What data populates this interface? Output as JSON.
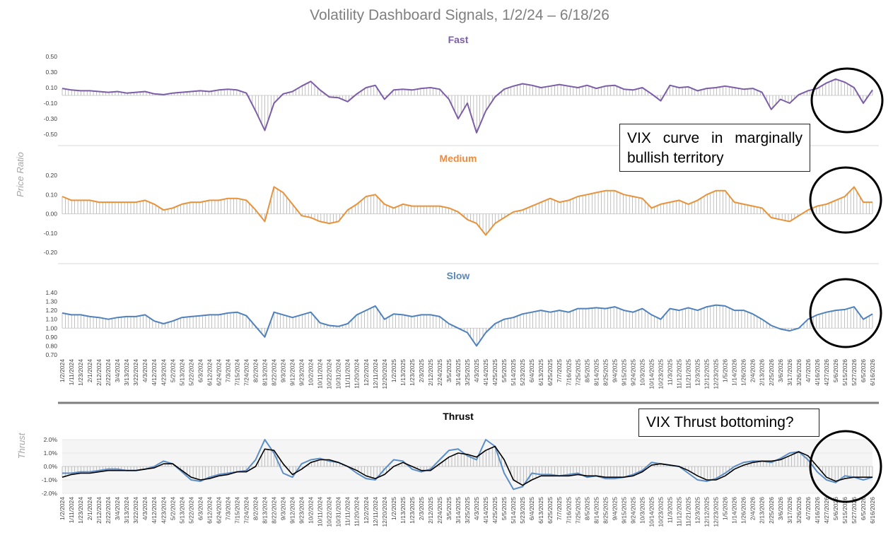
{
  "title": "Volatility Dashboard Signals, 1/2/24 – 6/18/26",
  "y_titles": {
    "top": "Price Ratio",
    "bottom": "Thrust"
  },
  "annotations": {
    "curve_note": "VIX curve in marginally bullish territory",
    "thrust_note": "VIX Thrust bottoming?"
  },
  "colors": {
    "fast": "#7b5ea7",
    "fast_title": "#7b5ea7",
    "medium": "#e8923a",
    "medium_title": "#ed8b3c",
    "slow": "#4f81bd",
    "slow_title": "#5a87b8",
    "thrust_fast": "#5b8ec6",
    "thrust_slow": "#000000",
    "hist": "#a6a6a6",
    "divider": "#7f7f7f"
  },
  "x_dates_1": [
    "1/2/2024",
    "1/11/2024",
    "1/23/2024",
    "2/1/2024",
    "2/12/2024",
    "2/22/2024",
    "3/4/2024",
    "3/13/2024",
    "3/22/2024",
    "4/3/2024",
    "4/12/2024",
    "4/23/2024",
    "5/2/2024",
    "5/13/2024",
    "5/22/2024",
    "6/3/2024",
    "6/12/2024",
    "6/24/2024",
    "7/3/2024",
    "7/15/2024",
    "7/24/2024",
    "8/2/2024",
    "8/13/2024",
    "8/22/2024",
    "9/3/2024",
    "9/12/2024",
    "9/23/2024",
    "10/2/2024",
    "10/11/2024",
    "10/22/2024",
    "10/31/2024",
    "11/11/2024",
    "11/20/2024",
    "12/2/2024",
    "12/11/2024",
    "12/20/2024",
    "1/2/2025",
    "1/13/2025",
    "1/23/2025",
    "2/3/2025",
    "2/12/2025",
    "2/24/2025",
    "3/5/2025",
    "3/14/2025",
    "3/25/2025",
    "4/3/2025",
    "4/14/2025",
    "4/25/2025",
    "5/5/2025",
    "5/14/2025",
    "5/23/2025",
    "6/4/2025",
    "6/13/2025",
    "6/25/2025",
    "7/7/2025",
    "7/16/2025",
    "7/25/2025",
    "8/5/2025",
    "8/14/2025",
    "8/25/2025",
    "9/4/2025",
    "9/15/2025",
    "9/24/2025",
    "10/3/2025",
    "10/14/2025",
    "10/23/2025",
    "11/3/2025",
    "11/12/2025",
    "11/21/2025",
    "12/3/2025",
    "12/12/2025",
    "12/23/2025",
    "1/5/2026",
    "1/14/2026",
    "1/26/2026",
    "2/4/2026",
    "2/13/2026",
    "2/25/2026",
    "3/6/2026",
    "3/17/2026",
    "3/26/2026",
    "4/7/2026",
    "4/16/2026",
    "4/27/2026",
    "5/6/2026",
    "5/15/2026",
    "5/27/2026",
    "6/5/2026",
    "6/16/2026"
  ],
  "x_dates_2": [
    "1/2/2024",
    "1/11/2024",
    "1/23/2024",
    "2/1/2024",
    "2/12/2024",
    "2/22/2024",
    "3/4/2024",
    "3/13/2024",
    "3/22/2024",
    "4/3/2024",
    "4/12/2024",
    "4/23/2024",
    "5/2/2024",
    "5/13/2024",
    "5/22/2024",
    "6/3/2024",
    "6/12/2024",
    "6/24/2024",
    "7/3/2024",
    "7/15/2024",
    "7/24/2024",
    "8/2/2024",
    "8/13/2024",
    "8/22/2024",
    "9/3/2024",
    "9/12/2024",
    "9/23/2024",
    "10/2/2024",
    "10/11/2024",
    "10/22/2024",
    "10/31/2024",
    "11/11/2024",
    "11/20/2024",
    "12/2/2024",
    "12/11/2024",
    "12/20/2024",
    "1/2/2025",
    "1/13/2025",
    "1/23/2025",
    "2/3/2025",
    "2/12/2025",
    "2/24/2025",
    "3/5/2025",
    "3/14/2025",
    "3/25/2025",
    "4/3/2025",
    "4/14/2025",
    "4/25/2025",
    "5/5/2025",
    "5/14/2025",
    "5/23/2025",
    "6/4/2025",
    "6/13/2025",
    "6/25/2025",
    "7/7/2025",
    "7/16/2025",
    "7/25/2025",
    "8/5/2025",
    "8/14/2025",
    "8/25/2025",
    "9/4/2025",
    "9/15/2025",
    "9/24/2025",
    "10/3/2025",
    "10/14/2025",
    "10/23/2025",
    "11/3/2025",
    "11/12/2025",
    "11/21/2025",
    "12/3/2025",
    "12/12/2025",
    "12/23/2025",
    "1/5/2026",
    "1/14/2026",
    "1/26/2026",
    "2/4/2026",
    "2/13/2026",
    "2/25/2026",
    "3/6/2026",
    "3/17/2026",
    "3/26/2026",
    "4/7/2026",
    "4/16/2026",
    "4/27/2026",
    "5/6/2026",
    "5/15/2026",
    "5/27/2026",
    "6/5/2026",
    "6/16/2026"
  ],
  "chart_data": [
    {
      "name": "fast",
      "type": "line",
      "title": "Fast",
      "ylim": [
        -0.5,
        0.5
      ],
      "yticks": [
        "0.50",
        "0.30",
        "0.10",
        "-0.10",
        "-0.30",
        "-0.50"
      ],
      "hist": true,
      "series": [
        {
          "name": "Fast",
          "values": [
            0.09,
            0.07,
            0.06,
            0.06,
            0.05,
            0.04,
            0.05,
            0.03,
            0.04,
            0.05,
            0.02,
            0.01,
            0.03,
            0.04,
            0.05,
            0.06,
            0.05,
            0.07,
            0.08,
            0.07,
            0.03,
            -0.2,
            -0.45,
            -0.1,
            0.02,
            0.05,
            0.12,
            0.18,
            0.07,
            -0.02,
            -0.03,
            -0.08,
            0.02,
            0.1,
            0.13,
            -0.05,
            0.07,
            0.08,
            0.07,
            0.09,
            0.1,
            0.08,
            -0.05,
            -0.3,
            -0.1,
            -0.48,
            -0.2,
            -0.02,
            0.08,
            0.12,
            0.15,
            0.13,
            0.1,
            0.12,
            0.14,
            0.12,
            0.1,
            0.13,
            0.09,
            0.12,
            0.13,
            0.08,
            0.07,
            0.1,
            0.02,
            -0.07,
            0.13,
            0.1,
            0.11,
            0.06,
            0.09,
            0.1,
            0.12,
            0.1,
            0.08,
            0.09,
            0.04,
            -0.18,
            -0.05,
            -0.1,
            0.01,
            0.06,
            0.09,
            0.16,
            0.21,
            0.17,
            0.1,
            -0.1,
            0.07
          ]
        }
      ]
    },
    {
      "name": "medium",
      "type": "line",
      "title": "Medium",
      "ylim": [
        -0.2,
        0.2
      ],
      "yticks": [
        "0.20",
        "0.10",
        "0.00",
        "-0.10",
        "-0.20"
      ],
      "hist": true,
      "series": [
        {
          "name": "Medium",
          "values": [
            0.09,
            0.07,
            0.07,
            0.07,
            0.06,
            0.06,
            0.06,
            0.06,
            0.06,
            0.07,
            0.05,
            0.02,
            0.03,
            0.05,
            0.06,
            0.06,
            0.07,
            0.07,
            0.08,
            0.08,
            0.07,
            0.02,
            -0.04,
            0.14,
            0.11,
            0.05,
            -0.01,
            -0.02,
            -0.04,
            -0.05,
            -0.04,
            0.02,
            0.05,
            0.09,
            0.1,
            0.05,
            0.03,
            0.05,
            0.04,
            0.04,
            0.04,
            0.04,
            0.03,
            0.01,
            -0.03,
            -0.05,
            -0.11,
            -0.05,
            -0.02,
            0.01,
            0.02,
            0.04,
            0.06,
            0.08,
            0.06,
            0.07,
            0.09,
            0.1,
            0.11,
            0.12,
            0.12,
            0.1,
            0.09,
            0.08,
            0.03,
            0.05,
            0.06,
            0.07,
            0.05,
            0.07,
            0.1,
            0.12,
            0.12,
            0.06,
            0.05,
            0.04,
            0.03,
            -0.02,
            -0.03,
            -0.04,
            -0.01,
            0.02,
            0.04,
            0.05,
            0.07,
            0.09,
            0.14,
            0.06,
            0.06
          ]
        }
      ]
    },
    {
      "name": "slow",
      "type": "line",
      "title": "Slow",
      "ylim": [
        0.7,
        1.4
      ],
      "yticks": [
        "1.40",
        "1.30",
        "1.20",
        "1.10",
        "1.00",
        "0.90",
        "0.80",
        "0.70"
      ],
      "hist_base": 1.0,
      "hist": true,
      "series": [
        {
          "name": "Slow",
          "values": [
            1.17,
            1.15,
            1.15,
            1.13,
            1.12,
            1.1,
            1.12,
            1.13,
            1.13,
            1.15,
            1.08,
            1.05,
            1.08,
            1.12,
            1.13,
            1.14,
            1.15,
            1.15,
            1.17,
            1.18,
            1.14,
            1.02,
            0.9,
            1.18,
            1.15,
            1.12,
            1.15,
            1.18,
            1.06,
            1.03,
            1.02,
            1.05,
            1.15,
            1.2,
            1.25,
            1.1,
            1.16,
            1.15,
            1.13,
            1.15,
            1.15,
            1.13,
            1.05,
            1.0,
            0.95,
            0.8,
            0.95,
            1.05,
            1.1,
            1.12,
            1.16,
            1.18,
            1.2,
            1.18,
            1.2,
            1.18,
            1.22,
            1.22,
            1.23,
            1.22,
            1.24,
            1.2,
            1.18,
            1.22,
            1.15,
            1.1,
            1.22,
            1.2,
            1.23,
            1.2,
            1.24,
            1.26,
            1.25,
            1.2,
            1.2,
            1.16,
            1.1,
            1.03,
            0.99,
            0.97,
            1.0,
            1.1,
            1.15,
            1.18,
            1.2,
            1.21,
            1.24,
            1.1,
            1.16
          ]
        }
      ]
    },
    {
      "name": "thrust",
      "type": "line",
      "title": "Thrust",
      "ylim": [
        -2.0,
        2.0
      ],
      "yticks": [
        "2.0%",
        "1.0%",
        "0.0%",
        "-1.0%",
        "-2.0%"
      ],
      "hist": true,
      "series": [
        {
          "name": "Thrust fast",
          "values": [
            -0.5,
            -0.5,
            -0.4,
            -0.4,
            -0.3,
            -0.2,
            -0.2,
            -0.3,
            -0.3,
            -0.2,
            0.0,
            0.4,
            0.2,
            -0.4,
            -1.0,
            -1.1,
            -0.8,
            -0.6,
            -0.5,
            -0.4,
            -0.3,
            0.5,
            2.0,
            1.0,
            -0.5,
            -0.8,
            0.2,
            0.5,
            0.6,
            0.4,
            0.3,
            0.0,
            -0.5,
            -0.9,
            -1.0,
            -0.2,
            0.5,
            0.4,
            -0.2,
            -0.4,
            -0.2,
            0.5,
            1.2,
            1.3,
            0.8,
            0.5,
            2.0,
            1.5,
            -0.5,
            -1.7,
            -1.5,
            -0.5,
            -0.6,
            -0.6,
            -0.7,
            -0.6,
            -0.5,
            -0.8,
            -0.7,
            -0.9,
            -0.9,
            -0.8,
            -0.6,
            -0.3,
            0.3,
            0.2,
            0.1,
            0.0,
            -0.5,
            -1.0,
            -1.1,
            -0.9,
            -0.5,
            0.0,
            0.3,
            0.4,
            0.4,
            0.3,
            0.6,
            1.0,
            1.1,
            0.5,
            -0.4,
            -1.0,
            -1.2,
            -0.7,
            -0.8,
            -1.0,
            -0.8
          ]
        },
        {
          "name": "Thrust slow",
          "values": [
            -0.8,
            -0.6,
            -0.5,
            -0.5,
            -0.4,
            -0.3,
            -0.3,
            -0.3,
            -0.3,
            -0.2,
            -0.1,
            0.2,
            0.2,
            -0.3,
            -0.8,
            -1.0,
            -0.9,
            -0.7,
            -0.6,
            -0.4,
            -0.4,
            0.0,
            1.3,
            1.2,
            0.2,
            -0.6,
            -0.2,
            0.3,
            0.5,
            0.5,
            0.3,
            0.0,
            -0.3,
            -0.7,
            -0.9,
            -0.6,
            0.0,
            0.3,
            0.0,
            -0.3,
            -0.3,
            0.2,
            0.7,
            1.0,
            0.9,
            0.7,
            1.2,
            1.5,
            0.5,
            -1.0,
            -1.4,
            -1.0,
            -0.7,
            -0.7,
            -0.7,
            -0.7,
            -0.6,
            -0.7,
            -0.7,
            -0.8,
            -0.8,
            -0.8,
            -0.7,
            -0.4,
            0.1,
            0.2,
            0.1,
            0.0,
            -0.3,
            -0.7,
            -1.0,
            -1.0,
            -0.7,
            -0.2,
            0.1,
            0.3,
            0.4,
            0.4,
            0.5,
            0.8,
            1.1,
            0.8,
            0.0,
            -0.8,
            -1.1,
            -0.9,
            -0.8,
            -0.8,
            -0.8
          ]
        }
      ]
    }
  ]
}
